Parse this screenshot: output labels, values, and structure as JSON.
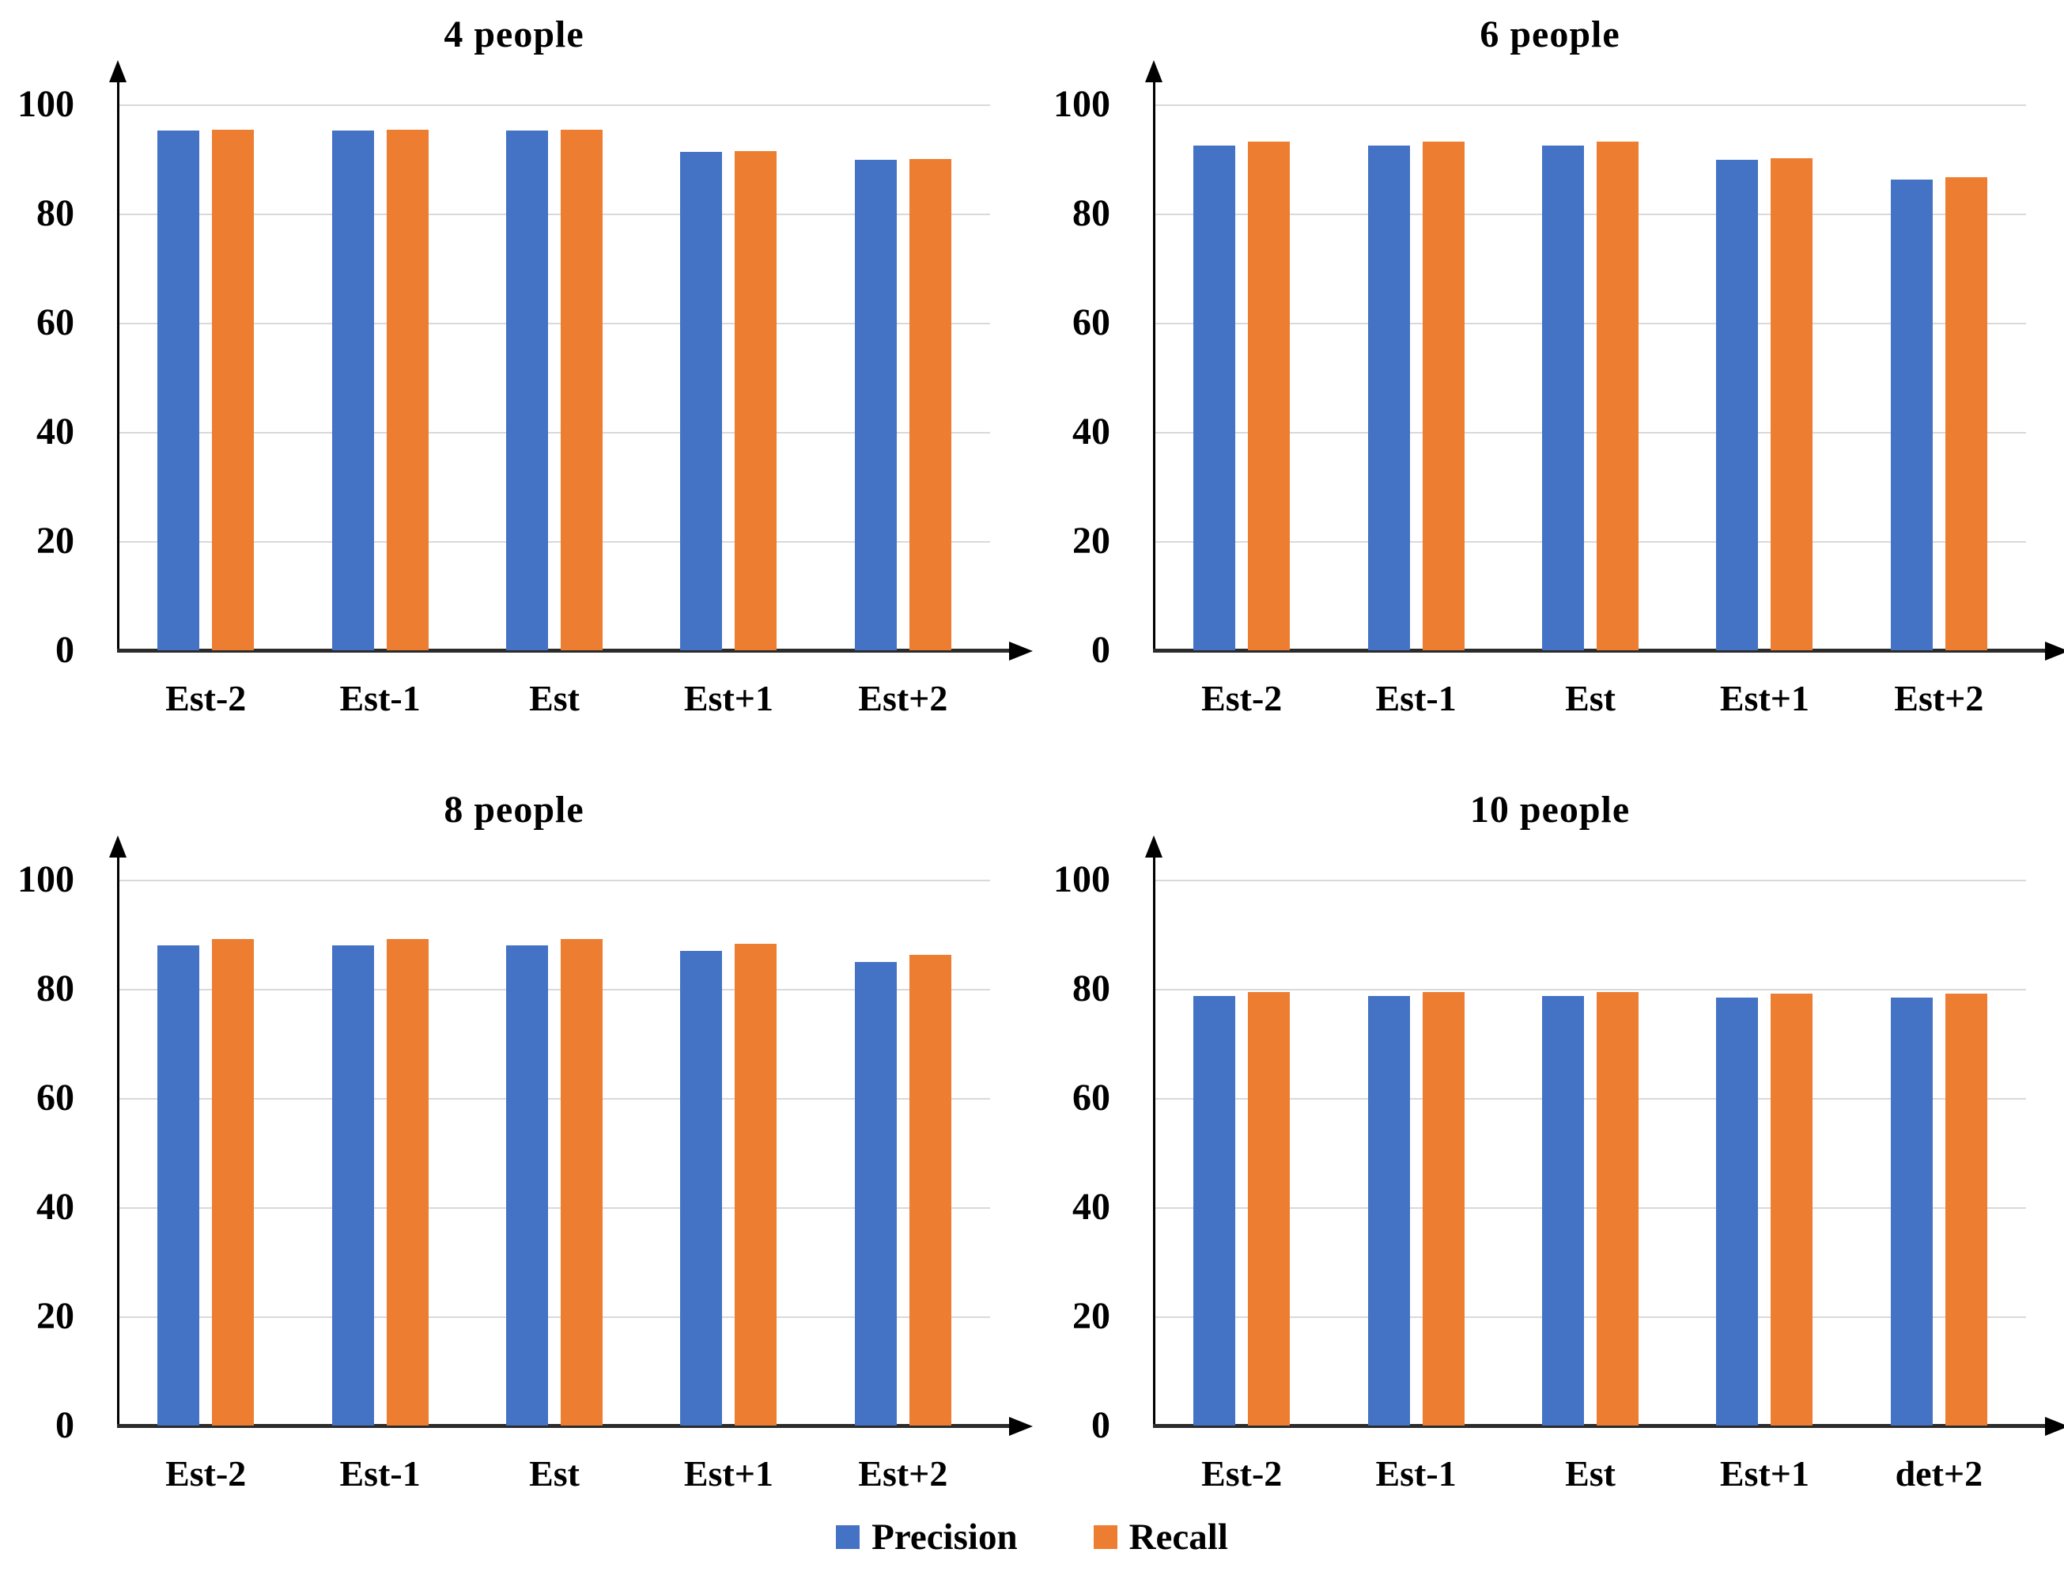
{
  "legend": {
    "items": [
      {
        "label": "Precision",
        "color": "#4472C4"
      },
      {
        "label": "Recall",
        "color": "#ED7D31"
      }
    ]
  },
  "chart_data": [
    {
      "type": "bar",
      "title": "4 people",
      "categories": [
        "Est-2",
        "Est-1",
        "Est",
        "Est+1",
        "Est+2"
      ],
      "series": [
        {
          "name": "Precision",
          "color": "#4472C4",
          "values": [
            95.2,
            95.2,
            95.2,
            91.3,
            89.8
          ]
        },
        {
          "name": "Recall",
          "color": "#ED7D31",
          "values": [
            95.3,
            95.3,
            95.3,
            91.5,
            90.0
          ]
        }
      ],
      "ylim": [
        0,
        100
      ],
      "yticks": [
        100,
        80,
        60,
        40,
        20,
        0
      ],
      "grid": true,
      "legend_position": "shared-bottom"
    },
    {
      "type": "bar",
      "title": "6 people",
      "categories": [
        "Est-2",
        "Est-1",
        "Est",
        "Est+1",
        "Est+2"
      ],
      "series": [
        {
          "name": "Precision",
          "color": "#4472C4",
          "values": [
            92.5,
            92.5,
            92.5,
            89.8,
            86.3
          ]
        },
        {
          "name": "Recall",
          "color": "#ED7D31",
          "values": [
            93.2,
            93.2,
            93.2,
            90.2,
            86.7
          ]
        }
      ],
      "ylim": [
        0,
        100
      ],
      "yticks": [
        100,
        80,
        60,
        40,
        20,
        0
      ],
      "grid": true,
      "legend_position": "shared-bottom"
    },
    {
      "type": "bar",
      "title": "8 people",
      "categories": [
        "Est-2",
        "Est-1",
        "Est",
        "Est+1",
        "Est+2"
      ],
      "series": [
        {
          "name": "Precision",
          "color": "#4472C4",
          "values": [
            88.0,
            88.0,
            88.0,
            87.0,
            85.0
          ]
        },
        {
          "name": "Recall",
          "color": "#ED7D31",
          "values": [
            89.2,
            89.2,
            89.2,
            88.2,
            86.2
          ]
        }
      ],
      "ylim": [
        0,
        100
      ],
      "yticks": [
        100,
        80,
        60,
        40,
        20,
        0
      ],
      "grid": true,
      "legend_position": "shared-bottom"
    },
    {
      "type": "bar",
      "title": "10 people",
      "categories": [
        "Est-2",
        "Est-1",
        "Est",
        "Est+1",
        "det+2"
      ],
      "series": [
        {
          "name": "Precision",
          "color": "#4472C4",
          "values": [
            78.7,
            78.7,
            78.7,
            78.4,
            78.4
          ]
        },
        {
          "name": "Recall",
          "color": "#ED7D31",
          "values": [
            79.4,
            79.4,
            79.4,
            79.2,
            79.2
          ]
        }
      ],
      "ylim": [
        0,
        100
      ],
      "yticks": [
        100,
        80,
        60,
        40,
        20,
        0
      ],
      "grid": true,
      "legend_position": "shared-bottom"
    }
  ]
}
